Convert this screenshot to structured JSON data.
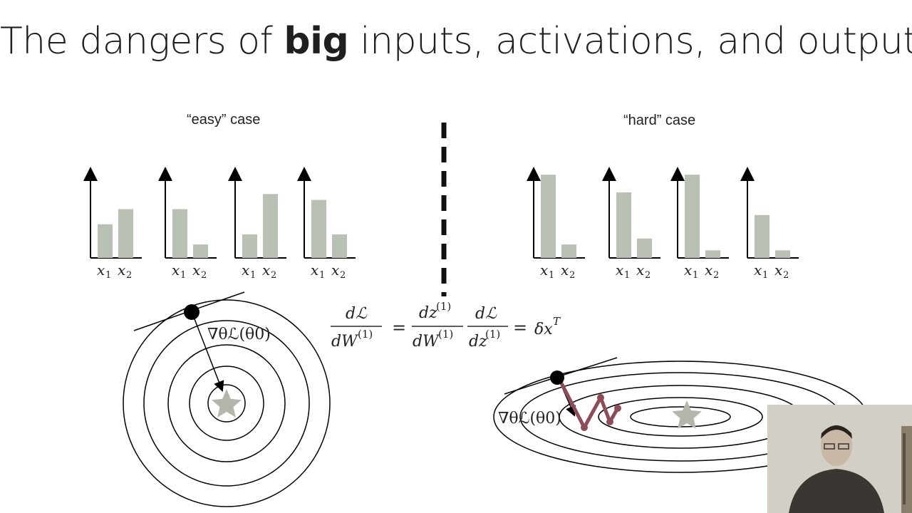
{
  "slide": {
    "title_pre": "The dangers of ",
    "title_bold": "big",
    "title_post": " inputs, activations, and outputs"
  },
  "easy_case": {
    "label": "“easy” case",
    "tick_x1": "x",
    "tick_x1_sub": "1",
    "tick_x2": "x",
    "tick_x2_sub": "2",
    "bars": [
      {
        "x1": 0.4,
        "x2": 0.58
      },
      {
        "x1": 0.58,
        "x2": 0.16
      },
      {
        "x1": 0.28,
        "x2": 0.76
      },
      {
        "x1": 0.69,
        "x2": 0.28
      }
    ],
    "gradient_label": "∇θℒ(θ0)"
  },
  "hard_case": {
    "label": "“hard” case",
    "bars": [
      {
        "x1": 0.99,
        "x2": 0.16
      },
      {
        "x1": 0.78,
        "x2": 0.23
      },
      {
        "x1": 0.99,
        "x2": 0.09
      },
      {
        "x1": 0.51,
        "x2": 0.09
      }
    ],
    "gradient_label": "∇θℒ(θ0)"
  },
  "equation": {
    "num1": "dℒ",
    "den1": "dW",
    "den1_sup": "(1)",
    "num2": "dz",
    "num2_sup": "(1)",
    "den2": "dW",
    "den2_sup": "(1)",
    "num3": "dℒ",
    "den3": "dz",
    "den3_sup": "(1)",
    "rhs": "δx",
    "rhs_sup": "T"
  },
  "colors": {
    "bar": "#b9c0b4",
    "axis": "#000000",
    "divider": "#111111",
    "star": "#b5b5ac",
    "zigzag": "#8d4c57"
  }
}
